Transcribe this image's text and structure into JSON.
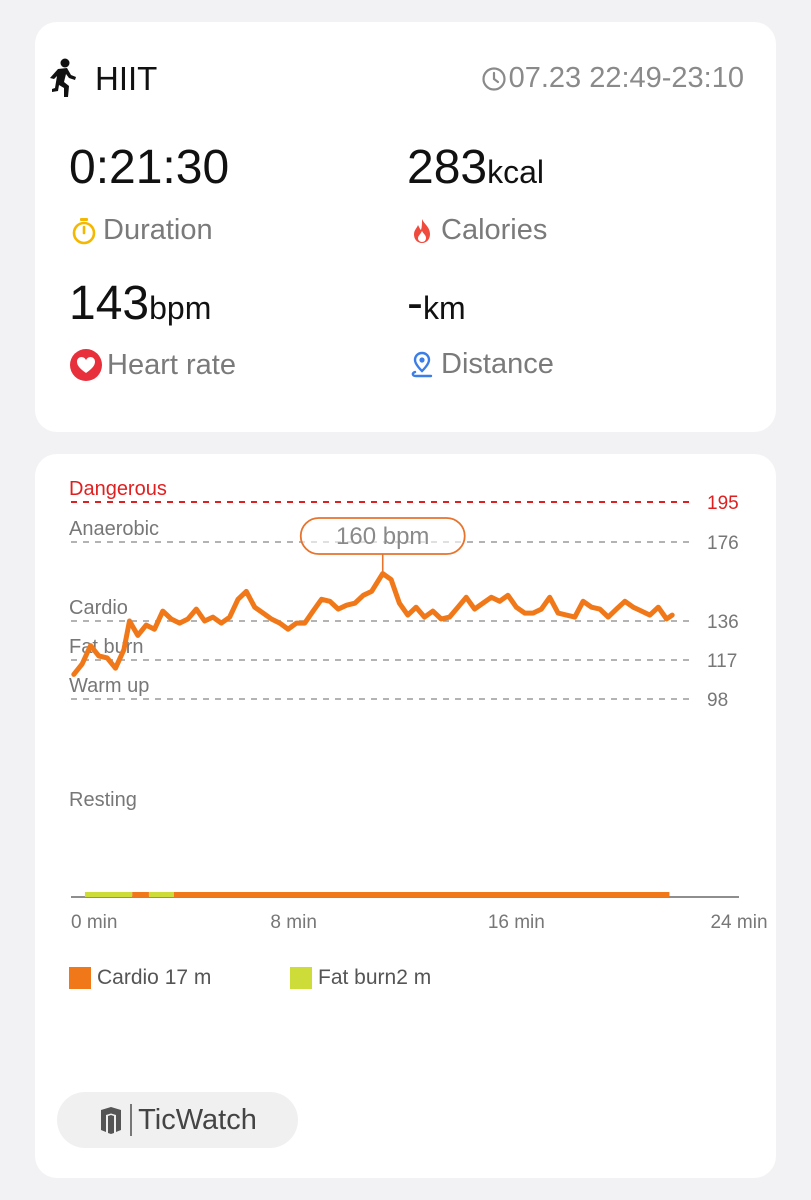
{
  "summary": {
    "activity": "HIIT",
    "activity_icon": "running-person-icon",
    "time_range": "07.23 22:49-23:10",
    "metrics": {
      "duration": {
        "value": "0:21:30",
        "unit": "",
        "label": "Duration",
        "icon": "stopwatch-icon",
        "color": "#f5b800"
      },
      "calories": {
        "value": "283",
        "unit": "kcal",
        "label": "Calories",
        "icon": "flame-icon",
        "color": "#ef4a3c"
      },
      "heart_rate": {
        "value": "143",
        "unit": "bpm",
        "label": "Heart rate",
        "icon": "heart-icon",
        "color": "#e8303d"
      },
      "distance": {
        "value": "-",
        "unit": "km",
        "label": "Distance",
        "icon": "location-pin-icon",
        "color": "#3b7ee8"
      }
    }
  },
  "chart_data": {
    "type": "line",
    "zones": [
      {
        "name": "Dangerous",
        "threshold": 195,
        "color": "#e02020"
      },
      {
        "name": "Anaerobic",
        "threshold": 176,
        "color": "#888888"
      },
      {
        "name": "Cardio",
        "threshold": 136,
        "color": "#888888"
      },
      {
        "name": "Fat burn",
        "threshold": 117,
        "color": "#888888"
      },
      {
        "name": "Warm up",
        "threshold": 98,
        "color": "#888888"
      },
      {
        "name": "Resting",
        "threshold": null,
        "color": "#888888"
      }
    ],
    "x_ticks": [
      "0 min",
      "8 min",
      "16 min",
      "24 min"
    ],
    "xlim": [
      0,
      24
    ],
    "peak": {
      "x": 11.2,
      "y": 160,
      "label": "160 bpm"
    },
    "series": [
      {
        "color": "#f07818",
        "x": [
          0.1,
          0.4,
          0.7,
          1.0,
          1.3,
          1.6,
          1.9,
          2.1,
          2.4,
          2.7,
          3.0,
          3.3,
          3.6,
          3.9,
          4.2,
          4.5,
          4.8,
          5.1,
          5.4,
          5.7,
          6.0,
          6.3,
          6.6,
          6.9,
          7.2,
          7.5,
          7.8,
          8.1,
          8.4,
          8.7,
          9.0,
          9.3,
          9.6,
          9.9,
          10.2,
          10.5,
          10.8,
          11.2,
          11.5,
          11.8,
          12.1,
          12.4,
          12.7,
          13.0,
          13.3,
          13.6,
          13.9,
          14.2,
          14.5,
          14.8,
          15.1,
          15.4,
          15.7,
          16.0,
          16.3,
          16.6,
          16.9,
          17.2,
          17.5,
          17.8,
          18.1,
          18.4,
          18.7,
          19.0,
          19.3,
          19.6,
          19.9,
          20.2,
          20.5,
          20.8,
          21.1,
          21.4,
          21.6
        ],
        "y": [
          110,
          115,
          124,
          119,
          118,
          113,
          122,
          136,
          129,
          134,
          132,
          141,
          137,
          135,
          137,
          142,
          136,
          138,
          135,
          138,
          147,
          151,
          143,
          140,
          137,
          135,
          132,
          135,
          135,
          141,
          147,
          146,
          142,
          144,
          145,
          149,
          151,
          160,
          157,
          145,
          139,
          143,
          138,
          141,
          137,
          138,
          143,
          148,
          142,
          145,
          148,
          146,
          149,
          143,
          140,
          140,
          142,
          148,
          140,
          139,
          138,
          146,
          143,
          142,
          138,
          142,
          146,
          143,
          141,
          139,
          143,
          137,
          139
        ]
      }
    ],
    "zone_bar": [
      {
        "from": 0.5,
        "to": 2.2,
        "zone": "Fat burn",
        "color": "#cddc39"
      },
      {
        "from": 2.2,
        "to": 2.8,
        "zone": "Cardio",
        "color": "#f07818"
      },
      {
        "from": 2.8,
        "to": 3.7,
        "zone": "Fat burn",
        "color": "#cddc39"
      },
      {
        "from": 3.7,
        "to": 21.5,
        "zone": "Cardio",
        "color": "#f07818"
      }
    ],
    "legend": [
      {
        "label": "Cardio 17 m",
        "color": "#f07818"
      },
      {
        "label": "Fat burn2 m",
        "color": "#cddc39"
      }
    ]
  },
  "footer": {
    "brand": "TicWatch",
    "brand_icon": "ticwatch-logo-icon"
  }
}
